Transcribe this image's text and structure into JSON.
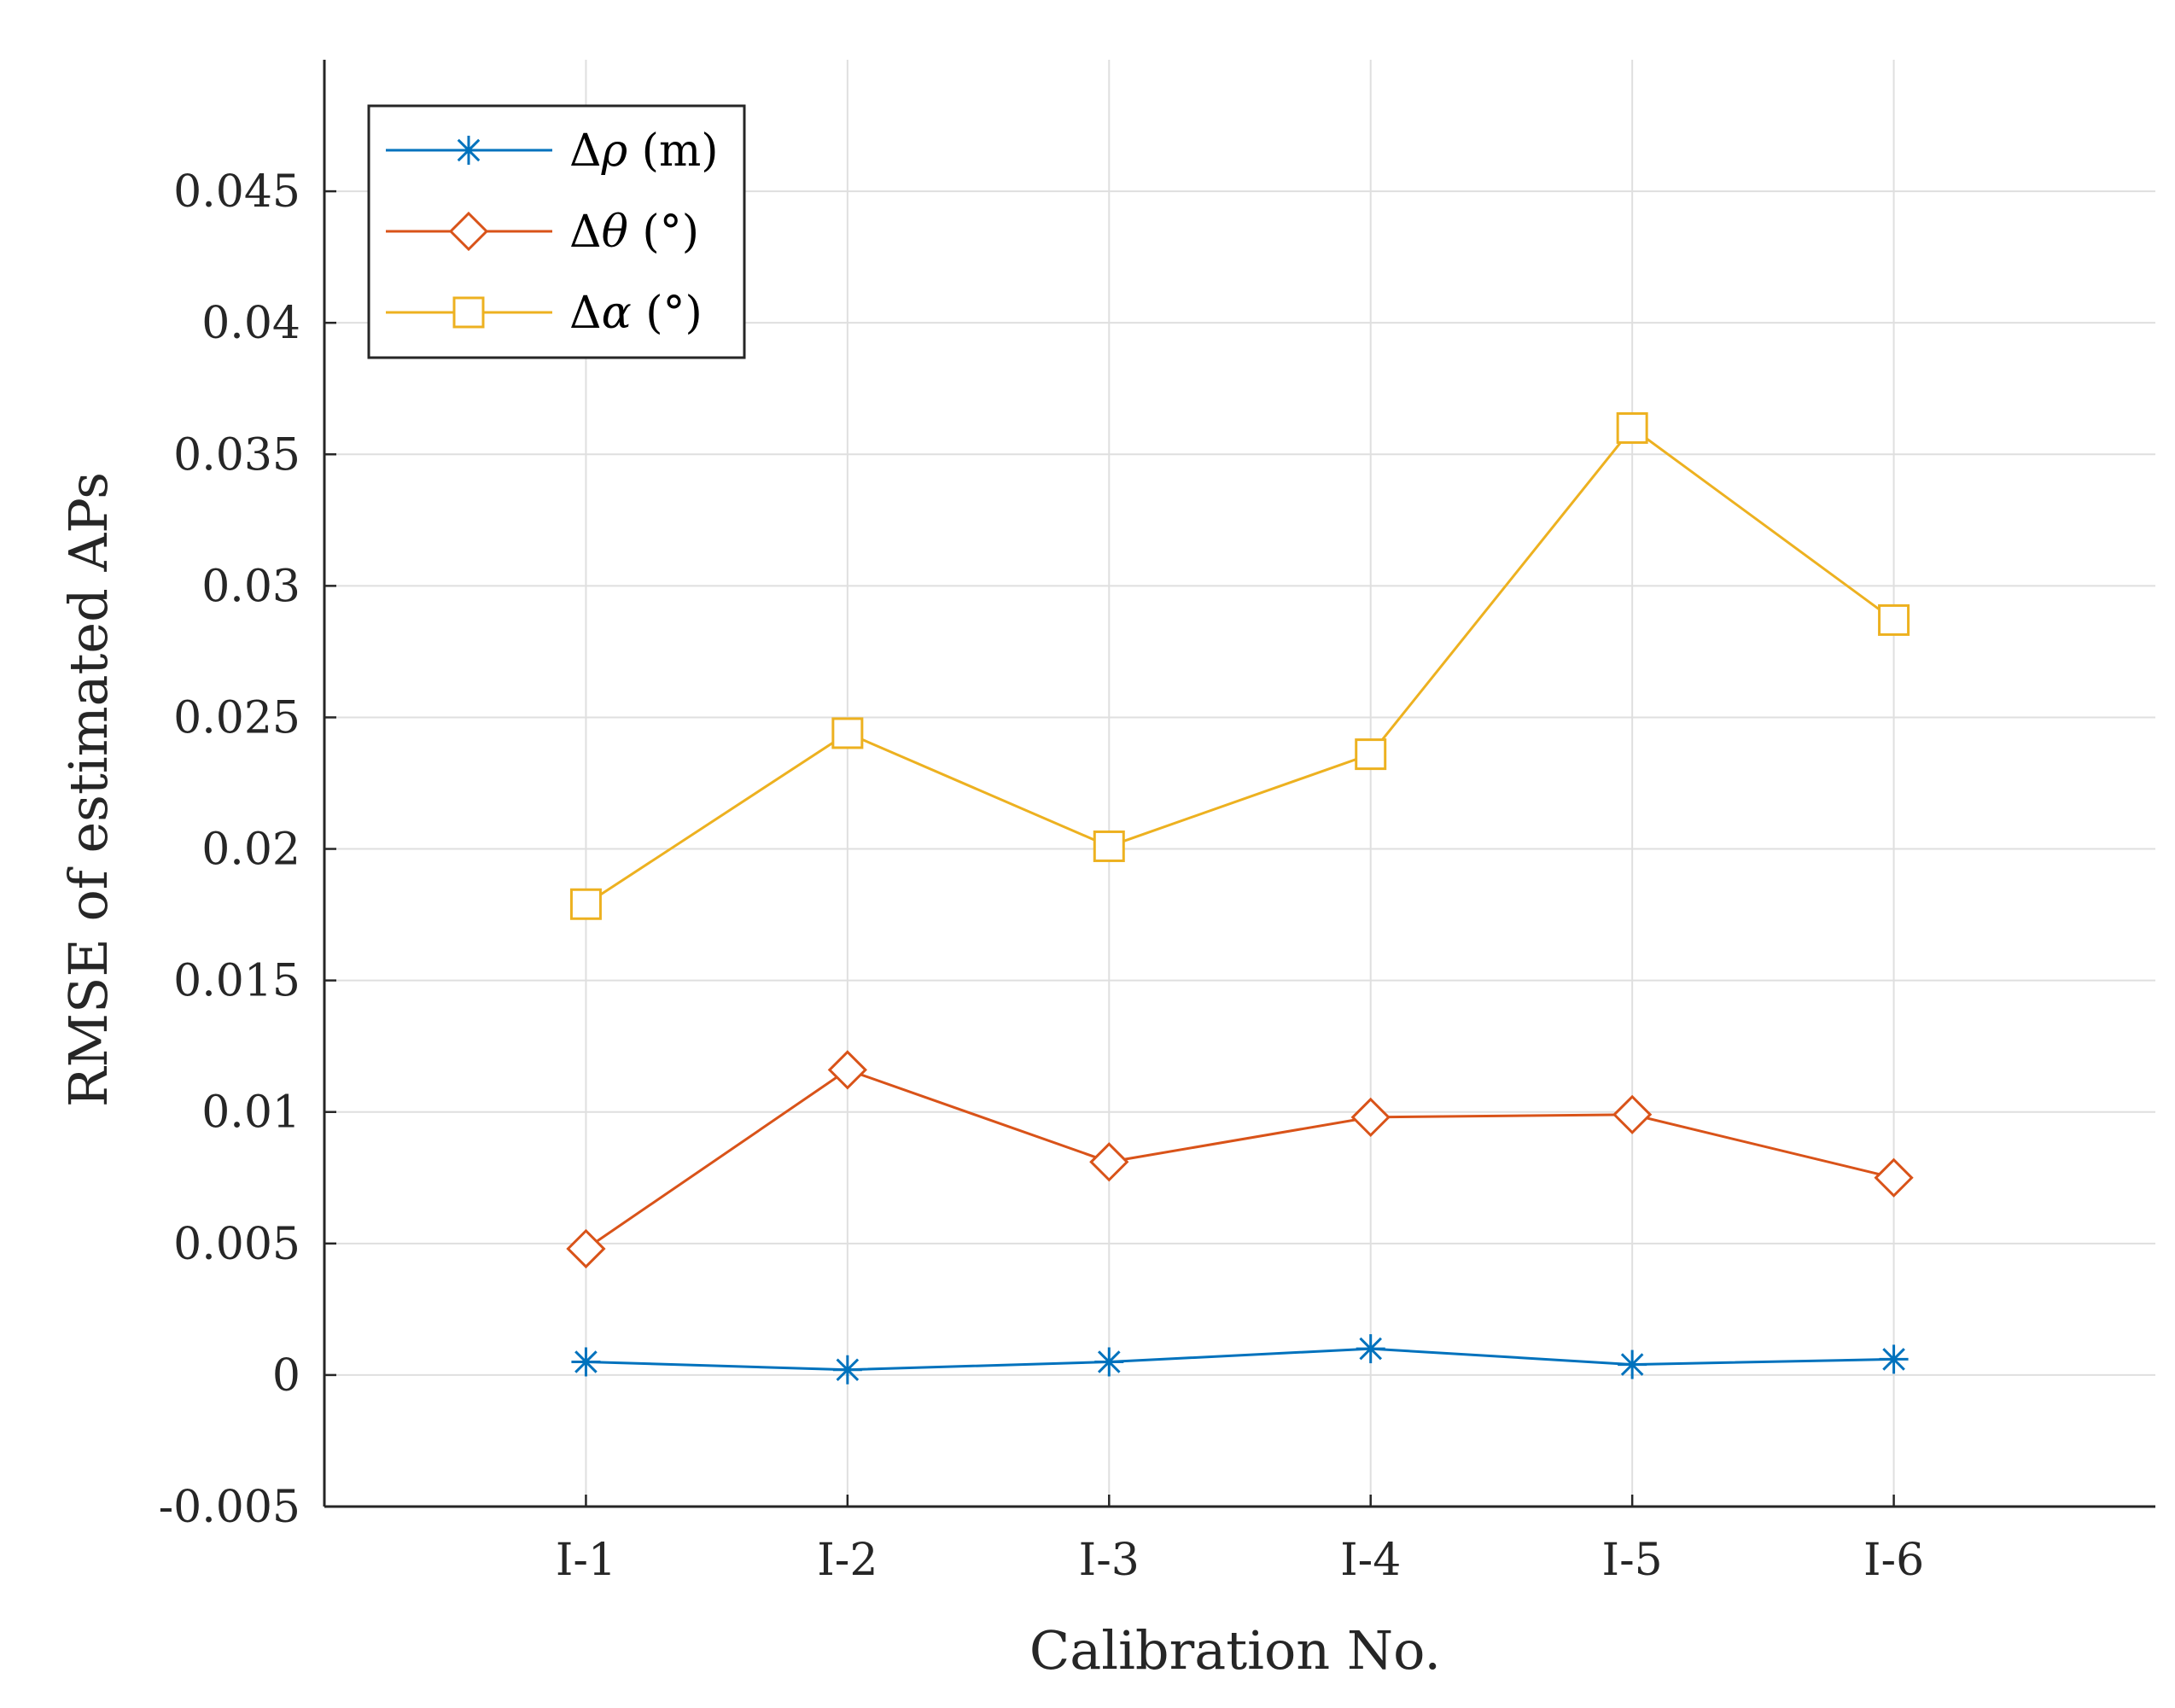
{
  "chart_data": {
    "type": "line",
    "title": "",
    "xlabel": "Calibration No.",
    "ylabel": "RMSE of estimated APs",
    "categories": [
      "I-1",
      "I-2",
      "I-3",
      "I-4",
      "I-5",
      "I-6"
    ],
    "xlim": [
      0,
      7
    ],
    "ylim": [
      -0.005,
      0.05
    ],
    "yticks": [
      -0.005,
      0,
      0.005,
      0.01,
      0.015,
      0.02,
      0.025,
      0.03,
      0.035,
      0.04,
      0.045
    ],
    "ytick_labels": [
      "-0.005",
      "0",
      "0.005",
      "0.01",
      "0.015",
      "0.02",
      "0.025",
      "0.03",
      "0.035",
      "0.04",
      "0.045"
    ],
    "grid": true,
    "legend_position": "top-left",
    "series": [
      {
        "name": "Δρ (m)",
        "label_main": "Δ",
        "label_symbol": "ρ",
        "label_unit": " (m)",
        "marker": "asterisk",
        "color": "#0072BD",
        "values": [
          0.0005,
          0.0002,
          0.0005,
          0.001,
          0.0004,
          0.0006
        ]
      },
      {
        "name": "Δθ (°)",
        "label_main": "Δ",
        "label_symbol": "θ",
        "label_unit": " (°)",
        "marker": "diamond",
        "color": "#D95319",
        "values": [
          0.0048,
          0.0116,
          0.0081,
          0.0098,
          0.0099,
          0.0075
        ]
      },
      {
        "name": "Δα (°)",
        "label_main": "Δ",
        "label_symbol": "α",
        "label_unit": " (°)",
        "marker": "square",
        "color": "#EDB120",
        "values": [
          0.0179,
          0.0244,
          0.0201,
          0.0236,
          0.036,
          0.0287
        ]
      }
    ]
  }
}
